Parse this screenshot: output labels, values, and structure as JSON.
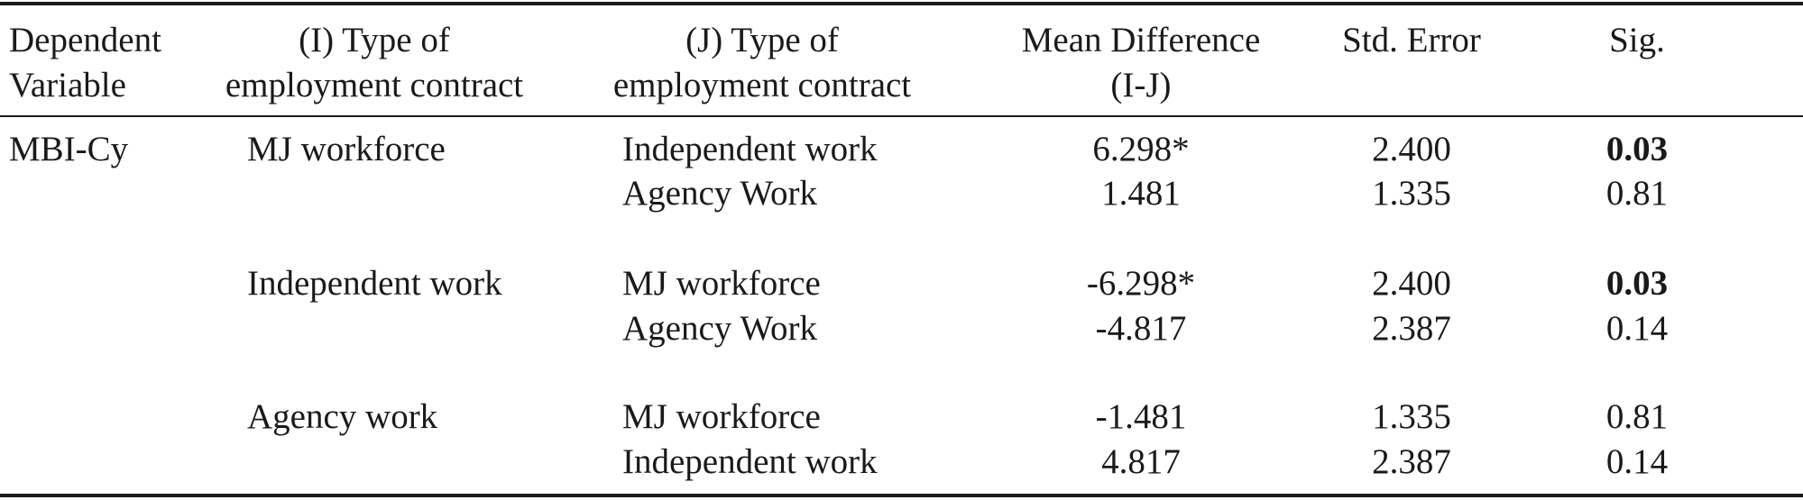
{
  "header": {
    "dependent_variable": [
      "Dependent",
      "Variable"
    ],
    "type_i": [
      "(I) Type of",
      "employment contract"
    ],
    "type_j": [
      "(J) Type of",
      "employment contract"
    ],
    "mean_difference": [
      "Mean Difference",
      "(I-J)"
    ],
    "std_error": "Std. Error",
    "sig": "Sig."
  },
  "dependent_variable": "MBI-Cy",
  "groups": [
    {
      "type_i": "MJ workforce",
      "rows": [
        {
          "type_j": "Independent work",
          "mean_difference": "6.298*",
          "std_error": "2.400",
          "sig": "0.03",
          "sig_bold": true
        },
        {
          "type_j": "Agency Work",
          "mean_difference": "1.481",
          "std_error": "1.335",
          "sig": "0.81",
          "sig_bold": false
        }
      ]
    },
    {
      "type_i": "Independent work",
      "rows": [
        {
          "type_j": "MJ workforce",
          "mean_difference": "-6.298*",
          "std_error": "2.400",
          "sig": "0.03",
          "sig_bold": true
        },
        {
          "type_j": "Agency Work",
          "mean_difference": "-4.817",
          "std_error": "2.387",
          "sig": "0.14",
          "sig_bold": false
        }
      ]
    },
    {
      "type_i": "Agency work",
      "rows": [
        {
          "type_j": "MJ workforce",
          "mean_difference": "-1.481",
          "std_error": "1.335",
          "sig": "0.81",
          "sig_bold": false
        },
        {
          "type_j": "Independent work",
          "mean_difference": "4.817",
          "std_error": "2.387",
          "sig": "0.14",
          "sig_bold": false
        }
      ]
    }
  ]
}
